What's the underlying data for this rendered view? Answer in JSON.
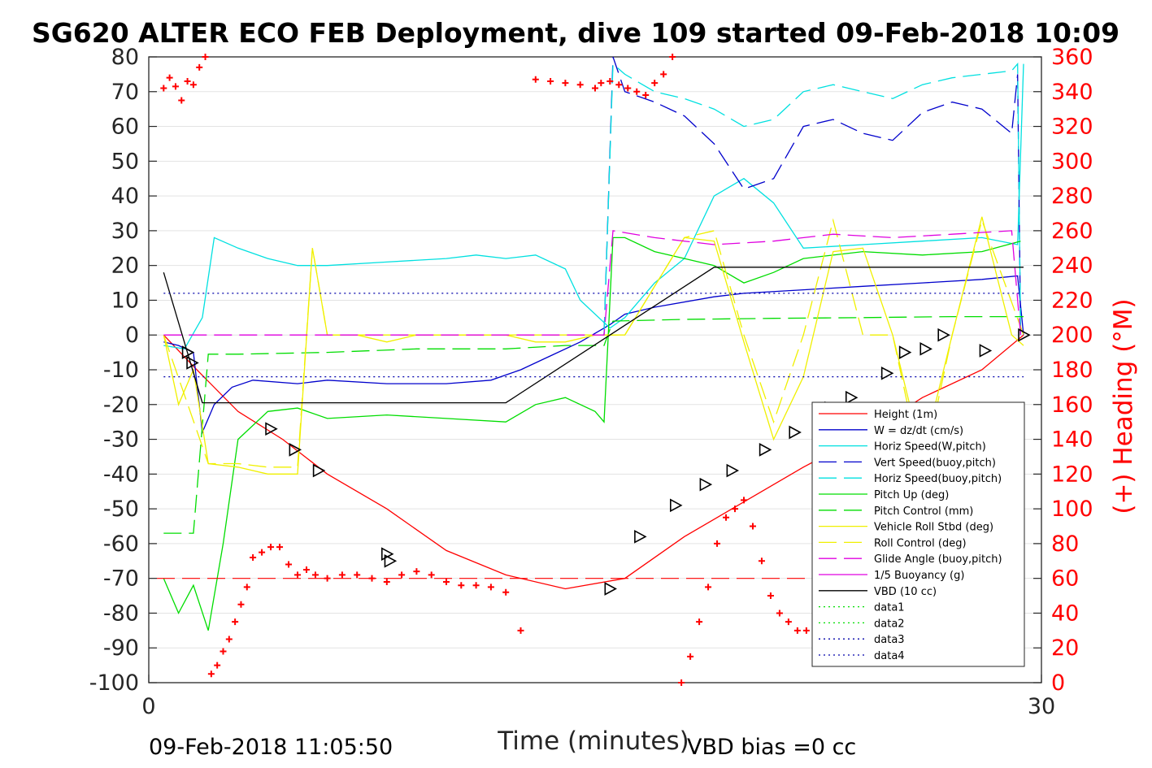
{
  "chart_data": {
    "type": "line",
    "title": "SG620 ALTER ECO FEB Deployment, dive 109 started 09-Feb-2018 10:09",
    "xlabel": "Time (minutes)",
    "ylabel": "",
    "ylabel_right": "(+) Heading (°M)",
    "xlim": [
      0,
      30
    ],
    "ylim": [
      -100,
      80
    ],
    "ylim_right": [
      0,
      360
    ],
    "x_ticks": [
      "0",
      "30"
    ],
    "y_ticks": [
      "80",
      "70",
      "60",
      "50",
      "40",
      "30",
      "20",
      "10",
      "0",
      "-10",
      "-20",
      "-30",
      "-40",
      "-50",
      "-60",
      "-70",
      "-80",
      "-90",
      "-100"
    ],
    "y_ticks_right": [
      "360",
      "340",
      "320",
      "300",
      "280",
      "260",
      "240",
      "220",
      "200",
      "180",
      "160",
      "140",
      "120",
      "100",
      "80",
      "60",
      "40",
      "20",
      "0"
    ],
    "grid": "horizontal",
    "legend_position": "right",
    "footer_left": "09-Feb-2018 11:05:50",
    "footer_right": "VBD bias =0 cc",
    "colors": {
      "height": "#ff0000",
      "w": "#0000cc",
      "horiz": "#00e0e0",
      "vert_buoy": "#0000cc",
      "pitch": "#00dd00",
      "roll": "#f0f000",
      "glide": "#e000e0",
      "vbd": "#000000",
      "data": "#0000aa",
      "heading": "#ff0000"
    },
    "series": [
      {
        "name": "Height (1m)",
        "style": "solid",
        "color": "#ff0000",
        "x": [
          0.5,
          1.5,
          3,
          4.5,
          6,
          8,
          10,
          12,
          14,
          16,
          18,
          20,
          22,
          24,
          26,
          28,
          29.4
        ],
        "y": [
          0,
          -9,
          -22,
          -30,
          -40,
          -50,
          -62,
          -69,
          -73,
          -70,
          -58,
          -48,
          -38,
          -29,
          -18,
          -10,
          0
        ]
      },
      {
        "name": "W = dz/dt (cm/s)",
        "style": "solid",
        "color": "#0000cc",
        "x": [
          0.5,
          1,
          1.5,
          1.8,
          2.2,
          2.8,
          3.5,
          5,
          6,
          8,
          10,
          11.5,
          12.5,
          13.5,
          14.5,
          15.5,
          16,
          17,
          19,
          20,
          22,
          24,
          26,
          28,
          29.2,
          29.4
        ],
        "y": [
          -2,
          -3,
          -5,
          -28,
          -20,
          -15,
          -13,
          -14,
          -13,
          -14,
          -14,
          -13,
          -10,
          -6,
          -2,
          3,
          6,
          8,
          11,
          12,
          13,
          14,
          15,
          16,
          17,
          0
        ]
      },
      {
        "name": "Horiz Speed(W,pitch)",
        "style": "solid",
        "color": "#00e0e0",
        "x": [
          0.5,
          1.2,
          1.8,
          2.2,
          3,
          4,
          5,
          6,
          8,
          10,
          11,
          12,
          13,
          14,
          14.5,
          15.5,
          16,
          17,
          18,
          19,
          20,
          21,
          22,
          24,
          26,
          28,
          29.2,
          29.4
        ],
        "y": [
          -3,
          -4,
          5,
          28,
          25,
          22,
          20,
          20,
          21,
          22,
          23,
          22,
          23,
          19,
          10,
          2,
          5,
          15,
          22,
          40,
          45,
          38,
          25,
          26,
          27,
          28,
          26,
          78
        ]
      },
      {
        "name": "Vert Speed(buoy,pitch)",
        "style": "dashed",
        "color": "#0000cc",
        "x": [
          15.3,
          15.6,
          16,
          17,
          18,
          19,
          20,
          21,
          22,
          23,
          24,
          25,
          26,
          27,
          28,
          29,
          29.2,
          29.3
        ],
        "y": [
          0,
          80,
          70,
          67,
          63,
          55,
          42,
          45,
          60,
          62,
          58,
          56,
          64,
          67,
          65,
          58,
          75,
          0
        ]
      },
      {
        "name": "Horiz Speed(buoy,pitch)",
        "style": "dashed",
        "color": "#00e0e0",
        "x": [
          15.3,
          15.6,
          16,
          17,
          18,
          19,
          20,
          21,
          22,
          23,
          24,
          25,
          26,
          27,
          28,
          29,
          29.2,
          29.3
        ],
        "y": [
          0,
          78,
          75,
          70,
          68,
          65,
          60,
          62,
          70,
          72,
          70,
          68,
          72,
          74,
          75,
          76,
          78,
          0
        ]
      },
      {
        "name": "Pitch Up (deg)",
        "style": "solid",
        "color": "#00dd00",
        "x": [
          0.5,
          1,
          1.5,
          2,
          2.5,
          3,
          4,
          5,
          6,
          8,
          10,
          12,
          13,
          14,
          15,
          15.3,
          15.6,
          16,
          17,
          18,
          19,
          20,
          21,
          22,
          24,
          26,
          28,
          29.3
        ],
        "y": [
          -70,
          -80,
          -72,
          -85,
          -60,
          -30,
          -22,
          -21,
          -24,
          -23,
          -24,
          -25,
          -20,
          -18,
          -22,
          -25,
          28,
          28,
          24,
          22,
          20,
          15,
          18,
          22,
          24,
          23,
          24,
          27
        ]
      },
      {
        "name": "Pitch Control (mm)",
        "style": "dashed",
        "color": "#00dd00",
        "x": [
          0.5,
          1.5,
          2,
          3,
          6,
          9,
          12,
          14,
          15.3,
          15.6,
          18,
          21,
          24,
          27,
          29.4
        ],
        "y": [
          -57,
          -57,
          -5.5,
          -5.5,
          -5,
          -4,
          -4,
          -3,
          -3,
          4,
          4.5,
          4.8,
          5,
          5.3,
          5.3
        ]
      },
      {
        "name": "Vehicle Roll Stbd (deg)",
        "style": "solid",
        "color": "#f0f000",
        "x": [
          0.5,
          1,
          1.5,
          2,
          3,
          4,
          5,
          5.5,
          6,
          7,
          8,
          9,
          10,
          11,
          12,
          13,
          14,
          15,
          16,
          18,
          19,
          20,
          21,
          22,
          23,
          24,
          25,
          26,
          27,
          28,
          29,
          29.4
        ],
        "y": [
          0,
          -20,
          -10,
          -37,
          -38,
          -40,
          -40,
          25,
          0,
          0,
          -2,
          0,
          0,
          0,
          0,
          -2,
          -2,
          0,
          0,
          28,
          27,
          -2,
          -30,
          -12,
          24,
          25,
          0,
          -35,
          0,
          34,
          0,
          -3
        ]
      },
      {
        "name": "Roll Control (deg)",
        "style": "dashed",
        "color": "#f0f000",
        "x": [
          0.5,
          2,
          3,
          4,
          5,
          5.5,
          6,
          8,
          10,
          12,
          14,
          16,
          18,
          19,
          20,
          21,
          22,
          23,
          24,
          25,
          26,
          27,
          28,
          29.4
        ],
        "y": [
          0,
          -37,
          -37,
          -38,
          -38,
          25,
          0,
          0,
          0,
          0,
          0,
          0,
          28,
          30,
          0,
          -25,
          0,
          33,
          0,
          0,
          -40,
          0,
          33,
          0
        ]
      },
      {
        "name": "Glide Angle (buoy,pitch)",
        "style": "dashed",
        "color": "#e000e0",
        "x": [
          0.5,
          15.3,
          15.6,
          17,
          19,
          21,
          23,
          25,
          27,
          29,
          29.3
        ],
        "y": [
          0,
          0,
          30,
          28,
          26,
          27,
          29,
          28,
          29,
          30,
          0
        ]
      },
      {
        "name": "1/5 Buoyancy (g)",
        "style": "solid",
        "color": "#e000e0",
        "x": [],
        "y": []
      },
      {
        "name": "VBD (10 cc)",
        "style": "solid",
        "color": "#000000",
        "x": [
          0.5,
          1.8,
          12,
          15.5,
          19,
          29.4
        ],
        "y": [
          18,
          -19.5,
          -19.5,
          0,
          19.5,
          19.5
        ]
      },
      {
        "name": "data1",
        "style": "dotted",
        "color": "#00dd00",
        "x": [],
        "y": []
      },
      {
        "name": "data2",
        "style": "dotted",
        "color": "#00dd00",
        "x": [],
        "y": []
      },
      {
        "name": "data3",
        "style": "dotted",
        "color": "#0000aa",
        "x": [
          0.5,
          29.4
        ],
        "y": [
          12,
          12
        ]
      },
      {
        "name": "data4",
        "style": "dotted",
        "color": "#0000aa",
        "x": [
          0.5,
          29.4
        ],
        "y": [
          -12,
          -12
        ]
      }
    ],
    "heading_threshold_right": 60,
    "heading_points": {
      "x": [
        0.5,
        0.7,
        0.9,
        1.1,
        1.3,
        1.5,
        1.7,
        1.9,
        2.1,
        2.3,
        2.5,
        2.7,
        2.9,
        3.1,
        3.3,
        3.5,
        3.8,
        4.1,
        4.4,
        4.7,
        5.0,
        5.3,
        5.6,
        6,
        6.5,
        7,
        7.5,
        8,
        8.5,
        9,
        9.5,
        10,
        10.5,
        11,
        11.5,
        12,
        12.5,
        13,
        13.5,
        14,
        14.5,
        15,
        15.2,
        15.5,
        15.8,
        16.1,
        16.4,
        16.7,
        17,
        17.3,
        17.6,
        17.9,
        18.2,
        18.5,
        18.8,
        19.1,
        19.4,
        19.7,
        20,
        20.3,
        20.6,
        20.9,
        21.2,
        21.5,
        21.8,
        22.1,
        22.4,
        22.7,
        23,
        23.3,
        23.6,
        23.9,
        24.2,
        24.5,
        24.8,
        25.1,
        25.4,
        25.7,
        26,
        26.3,
        26.6,
        26.9,
        27.2,
        27.5,
        27.8,
        28.1,
        28.4,
        28.7,
        29,
        29.2
      ],
      "y": [
        342,
        348,
        343,
        335,
        346,
        344,
        354,
        362,
        5,
        10,
        18,
        25,
        35,
        45,
        55,
        72,
        75,
        78,
        78,
        68,
        62,
        65,
        62,
        60,
        62,
        62,
        60,
        58,
        62,
        64,
        62,
        58,
        56,
        56,
        55,
        52,
        30,
        347,
        346,
        345,
        344,
        342,
        345,
        346,
        344,
        342,
        340,
        338,
        345,
        350,
        362,
        0,
        15,
        35,
        55,
        80,
        95,
        100,
        105,
        90,
        70,
        50,
        40,
        35,
        30,
        30,
        42,
        60,
        75,
        80,
        75,
        60,
        50,
        42,
        35,
        30,
        35,
        40,
        45,
        50,
        55,
        62,
        75,
        90,
        100,
        105,
        110,
        108,
        106,
        104
      ]
    },
    "markers": {
      "x": [
        1.3,
        1.45,
        4.1,
        4.9,
        5.7,
        8,
        8.1,
        15.5,
        16.5,
        17.7,
        18.7,
        19.6,
        20.7,
        21.7,
        22.9,
        23.6,
        24.8,
        25.4,
        26.1,
        26.7,
        28.1,
        29.4
      ],
      "y": [
        -5,
        -8,
        -27,
        -33,
        -39,
        -63,
        -65,
        -73,
        -58,
        -49,
        -43,
        -39,
        -33,
        -28,
        -21,
        -18,
        -11,
        -5,
        -4,
        0,
        -4.5,
        0
      ]
    }
  }
}
